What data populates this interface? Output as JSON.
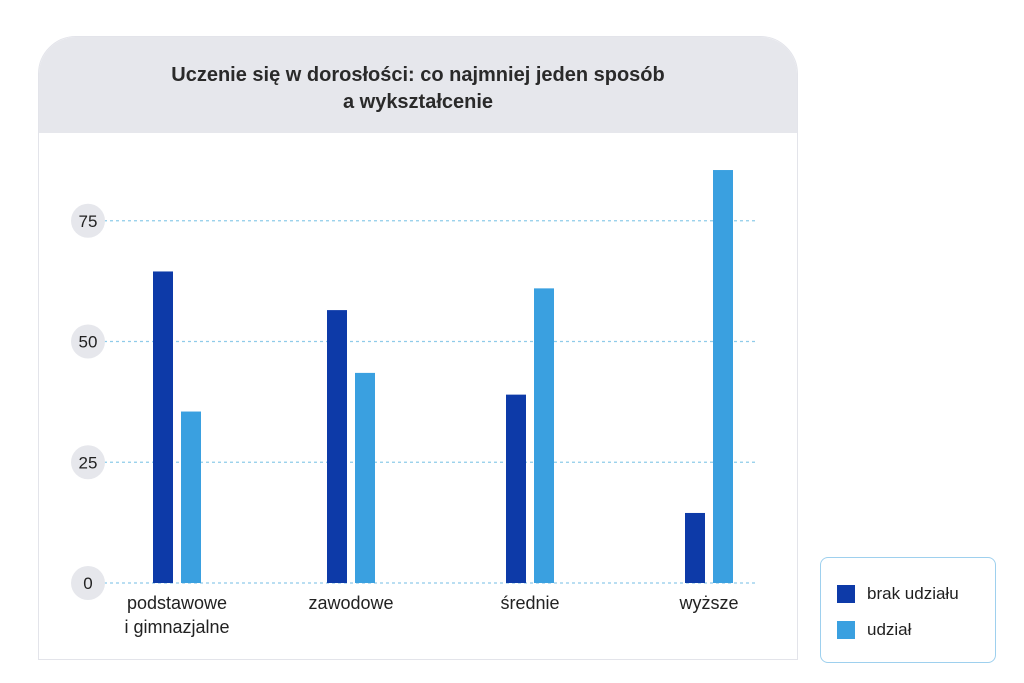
{
  "title_line1": "Uczenie się w dorosłości: co najmniej jeden sposób",
  "title_line2": "a wykształcenie",
  "colors": {
    "brak_udzialu": "#0d3aa8",
    "udzial": "#3aa0e0",
    "header_bg": "#e6e7ec",
    "grid": "#8fcbe9",
    "tick_badge": "#e6e7ec",
    "legend_border": "#9ed0ee"
  },
  "legend": [
    {
      "label": "brak udziału",
      "color": "#0d3aa8"
    },
    {
      "label": "udział",
      "color": "#3aa0e0"
    }
  ],
  "chart_data": {
    "type": "bar",
    "categories": [
      [
        "podstawowe",
        "i gimnazjalne"
      ],
      [
        "zawodowe"
      ],
      [
        "średnie"
      ],
      [
        "wyższe"
      ]
    ],
    "series": [
      {
        "name": "brak udziału",
        "values": [
          64.5,
          56.5,
          39,
          14.5
        ]
      },
      {
        "name": "udział",
        "values": [
          35.5,
          43.5,
          61,
          85.5
        ]
      }
    ],
    "y_ticks": [
      0,
      25,
      50,
      75
    ],
    "ylim": [
      0,
      90
    ],
    "grid": "horizontal dashed",
    "legend_position": "bottom-right"
  }
}
